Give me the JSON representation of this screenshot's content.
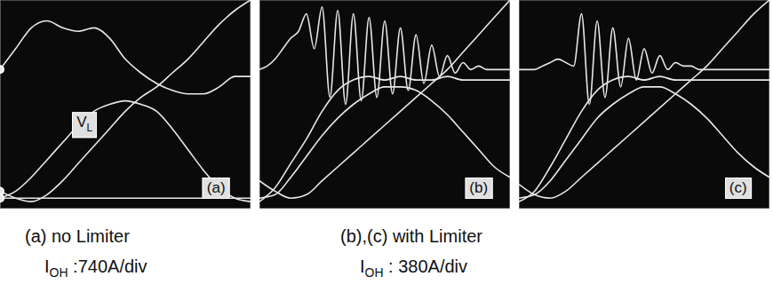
{
  "chart_data": [
    {
      "type": "line",
      "xlim": [
        0,
        8
      ],
      "ylim": [
        0,
        6
      ],
      "xticks": [
        0,
        1,
        2,
        3,
        4,
        5,
        6,
        7,
        8
      ],
      "yticks": [
        0,
        1,
        2,
        3,
        4,
        5,
        6
      ],
      "grid": true,
      "tick_labels": false,
      "series": [
        {
          "color": "#e8e8e8",
          "x": [
            0,
            0.5,
            1,
            1.5,
            2,
            2.5,
            3,
            3.5,
            4,
            4.5,
            5,
            5.5,
            6,
            6.5,
            7,
            7.5,
            8
          ],
          "values": [
            4.0,
            4.6,
            5.2,
            5.4,
            5.2,
            5.1,
            5.2,
            4.9,
            4.3,
            3.9,
            3.6,
            3.4,
            3.3,
            3.3,
            3.5,
            3.8,
            3.8
          ]
        },
        {
          "color": "#e8e8e8",
          "x": [
            0,
            0.5,
            1,
            1.5,
            2,
            2.5,
            3,
            3.5,
            4,
            4.5,
            5,
            5.5,
            6,
            6.5,
            7,
            7.5,
            8
          ],
          "values": [
            0.3,
            0.5,
            0.9,
            1.4,
            1.9,
            2.4,
            2.8,
            3.0,
            3.1,
            3.0,
            2.8,
            2.3,
            1.7,
            1.1,
            0.6,
            0.3,
            0.2
          ]
        },
        {
          "color": "#e8e8e8",
          "x": [
            0,
            0.5,
            1,
            1.5,
            2,
            2.5,
            3,
            3.5,
            4,
            4.5,
            5,
            5.5,
            6,
            6.5,
            7,
            7.5,
            8
          ],
          "values": [
            0.5,
            0.3,
            0.2,
            0.4,
            0.8,
            1.3,
            1.8,
            2.3,
            2.8,
            3.2,
            3.5,
            3.9,
            4.3,
            4.8,
            5.3,
            5.7,
            6.0
          ]
        },
        {
          "color": "#e8e8e8",
          "x": [
            0,
            8
          ],
          "values": [
            0.3,
            0.3
          ]
        }
      ],
      "annotations": [
        {
          "text": "(a)",
          "x": 6.9,
          "y": 0.6
        },
        {
          "symbol": "V",
          "subscript": "L",
          "x": 2.7,
          "y": 2.4
        }
      ]
    },
    {
      "type": "line",
      "xlim": [
        0,
        8
      ],
      "ylim": [
        0,
        6
      ],
      "xticks": [
        0,
        1,
        2,
        3,
        4,
        5,
        6,
        7,
        8
      ],
      "yticks": [
        0,
        1,
        2,
        3,
        4,
        5,
        6
      ],
      "grid": true,
      "tick_labels": false,
      "series": [
        {
          "color": "#e8e8e8",
          "x": [
            0,
            0.25,
            0.5,
            0.75,
            1,
            1.25,
            1.5,
            1.75,
            2,
            2.25,
            2.5,
            2.75,
            3,
            3.25,
            3.5,
            3.75,
            4,
            4.25,
            4.5,
            4.75,
            5,
            5.25,
            5.5,
            5.75,
            6,
            6.25,
            6.5,
            6.75,
            7,
            7.25,
            7.5,
            7.75,
            8
          ],
          "values": [
            4.0,
            4.1,
            4.3,
            4.6,
            4.9,
            5.1,
            5.6,
            4.6,
            5.8,
            3.2,
            5.7,
            3.0,
            5.6,
            3.1,
            5.5,
            3.2,
            5.4,
            3.3,
            5.2,
            3.4,
            5.0,
            3.6,
            4.7,
            3.8,
            4.4,
            3.9,
            4.2,
            4.0,
            4.1,
            4.0,
            4.0,
            4.0,
            4.0
          ]
        },
        {
          "color": "#e8e8e8",
          "x": [
            0,
            0.5,
            1,
            1.5,
            2,
            2.5,
            3,
            3.5,
            4,
            4.5,
            5,
            5.5,
            6,
            6.5,
            7,
            7.5,
            8
          ],
          "values": [
            0.2,
            0.6,
            1.3,
            2.0,
            2.8,
            3.4,
            3.7,
            3.8,
            3.7,
            3.8,
            3.7,
            3.7,
            3.8,
            3.7,
            3.7,
            3.7,
            3.7
          ]
        },
        {
          "color": "#e8e8e8",
          "x": [
            0,
            0.5,
            1,
            1.5,
            2,
            2.5,
            3,
            3.5,
            4,
            4.5,
            5,
            5.5,
            6,
            6.5,
            7,
            7.5,
            8
          ],
          "values": [
            0.3,
            0.4,
            0.9,
            1.5,
            2.1,
            2.6,
            3.0,
            3.3,
            3.5,
            3.5,
            3.4,
            3.1,
            2.7,
            2.2,
            1.7,
            1.2,
            0.9
          ]
        },
        {
          "color": "#e8e8e8",
          "x": [
            0,
            0.5,
            1,
            1.5,
            2,
            2.5,
            3,
            3.5,
            4,
            4.5,
            5,
            5.5,
            6,
            6.5,
            7,
            7.5,
            8
          ],
          "values": [
            0.8,
            0.5,
            0.3,
            0.4,
            0.8,
            1.2,
            1.6,
            2.0,
            2.4,
            2.8,
            3.2,
            3.6,
            4.0,
            4.5,
            5.0,
            5.5,
            6.0
          ]
        }
      ],
      "annotations": [
        {
          "text": "(b)",
          "x": 7.0,
          "y": 0.6
        }
      ]
    },
    {
      "type": "line",
      "xlim": [
        0,
        8
      ],
      "ylim": [
        0,
        6
      ],
      "xticks": [
        0,
        1,
        2,
        3,
        4,
        5,
        6,
        7,
        8
      ],
      "yticks": [
        0,
        1,
        2,
        3,
        4,
        5,
        6
      ],
      "grid": true,
      "tick_labels": false,
      "series": [
        {
          "color": "#e8e8e8",
          "x": [
            0,
            0.25,
            0.5,
            0.75,
            1,
            1.25,
            1.5,
            1.75,
            2,
            2.25,
            2.5,
            2.75,
            3,
            3.25,
            3.5,
            3.75,
            4,
            4.25,
            4.5,
            4.75,
            5,
            5.25,
            5.5,
            5.75,
            6,
            6.25,
            6.5,
            6.75,
            7,
            7.25,
            7.5,
            7.75,
            8
          ],
          "values": [
            4.0,
            4.0,
            4.0,
            4.1,
            4.2,
            4.3,
            4.2,
            4.1,
            5.6,
            3.0,
            5.4,
            3.2,
            5.2,
            3.5,
            4.9,
            3.7,
            4.6,
            3.9,
            4.4,
            4.0,
            4.2,
            4.1,
            4.1,
            4.0,
            4.0,
            4.0,
            4.0,
            4.0,
            4.0,
            4.0,
            4.0,
            4.0,
            4.0
          ]
        },
        {
          "color": "#e8e8e8",
          "x": [
            0,
            0.5,
            1,
            1.5,
            2,
            2.5,
            3,
            3.5,
            4,
            4.5,
            5,
            5.5,
            6,
            6.5,
            7,
            7.5,
            8
          ],
          "values": [
            0.2,
            0.5,
            1.2,
            2.0,
            2.8,
            3.4,
            3.7,
            3.8,
            3.7,
            3.8,
            3.7,
            3.7,
            3.7,
            3.7,
            3.7,
            3.7,
            3.7
          ]
        },
        {
          "color": "#e8e8e8",
          "x": [
            0,
            0.5,
            1,
            1.5,
            2,
            2.5,
            3,
            3.5,
            4,
            4.5,
            5,
            5.5,
            6,
            6.5,
            7,
            7.5,
            8
          ],
          "values": [
            0.3,
            0.4,
            0.8,
            1.4,
            2.0,
            2.6,
            3.0,
            3.3,
            3.5,
            3.5,
            3.3,
            3.0,
            2.6,
            2.1,
            1.6,
            1.2,
            0.9
          ]
        },
        {
          "color": "#e8e8e8",
          "x": [
            0,
            0.5,
            1,
            1.5,
            2,
            2.5,
            3,
            3.5,
            4,
            4.5,
            5,
            5.5,
            6,
            6.5,
            7,
            7.5,
            8
          ],
          "values": [
            0.7,
            0.4,
            0.3,
            0.5,
            0.9,
            1.3,
            1.7,
            2.1,
            2.5,
            2.9,
            3.3,
            3.7,
            4.1,
            4.6,
            5.1,
            5.6,
            6.0
          ]
        }
      ],
      "annotations": [
        {
          "text": "(c)",
          "x": 7.0,
          "y": 0.6
        }
      ]
    }
  ],
  "captions": [
    {
      "lines": [
        {
          "text": "(a) no Limiter"
        },
        {
          "symbol": "I",
          "subscript": "OH",
          "text": " :740A/div"
        }
      ]
    },
    {
      "lines": [
        {
          "text": "(b),(c) with Limiter"
        },
        {
          "symbol": "I",
          "subscript": "OH",
          "text": " : 380A/div"
        }
      ]
    }
  ]
}
